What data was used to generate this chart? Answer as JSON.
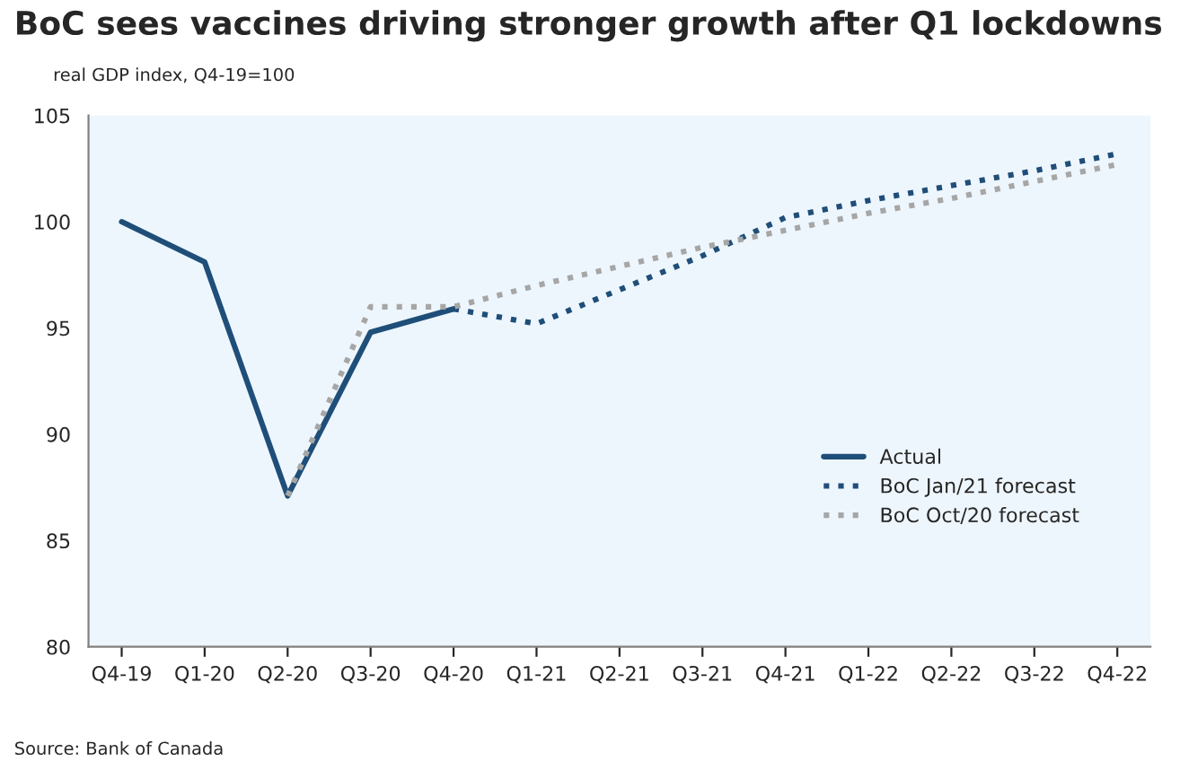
{
  "chart_data": {
    "type": "line",
    "title": "BoC sees vaccines driving stronger growth after Q1 lockdowns",
    "subtitle": "real GDP index, Q4-19=100",
    "categories": [
      "Q4-19",
      "Q1-20",
      "Q2-20",
      "Q3-20",
      "Q4-20",
      "Q1-21",
      "Q2-21",
      "Q3-21",
      "Q4-21",
      "Q1-22",
      "Q2-22",
      "Q3-22",
      "Q4-22"
    ],
    "series": [
      {
        "name": "Actual",
        "color": "#1f4e79",
        "line_style": "solid",
        "values": [
          100.0,
          98.1,
          87.1,
          94.8,
          95.9,
          null,
          null,
          null,
          null,
          null,
          null,
          null,
          null
        ]
      },
      {
        "name": "BoC Jan/21 forecast",
        "color": "#1f4e79",
        "line_style": "dotted",
        "values": [
          null,
          null,
          null,
          null,
          95.9,
          95.2,
          96.8,
          98.4,
          100.2,
          101.0,
          101.7,
          102.4,
          103.2
        ]
      },
      {
        "name": "BoC Oct/20 forecast",
        "color": "#a6a6a6",
        "line_style": "dotted",
        "values": [
          null,
          null,
          87.1,
          96.0,
          96.0,
          97.0,
          97.9,
          98.8,
          99.6,
          100.4,
          101.1,
          101.9,
          102.7
        ]
      }
    ],
    "ylim": [
      80,
      105
    ],
    "yticks": [
      80,
      85,
      90,
      95,
      100,
      105
    ],
    "grid": false,
    "legend": "right",
    "annotations": [
      "Source: Bank of Canada"
    ]
  }
}
